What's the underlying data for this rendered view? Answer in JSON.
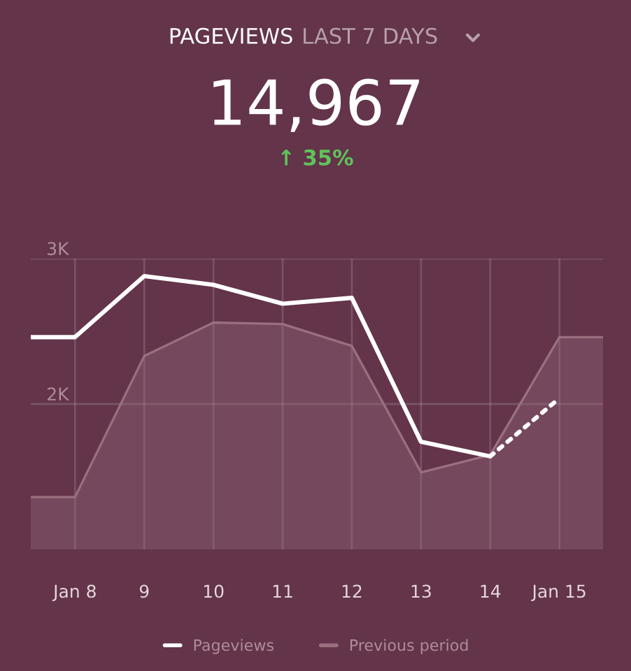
{
  "chart_data": {
    "type": "line",
    "title": "PAGEVIEWS",
    "subtitle": "LAST 7 DAYS",
    "annotations": [
      "14,967",
      "↑ 35%"
    ],
    "x": [
      7.36,
      8,
      9,
      10,
      11,
      12,
      13,
      14
    ],
    "series": [
      {
        "name": "Pageviews",
        "color": "#ffffff",
        "values": [
          2460,
          2460,
          2880,
          2820,
          2690,
          2730,
          1740,
          1640
        ]
      },
      {
        "type": "line",
        "color": "#ffffff",
        "line_style": "dotted",
        "x": [
          14,
          15
        ],
        "values": [
          1640,
          2040
        ]
      },
      {
        "name": "Previous period",
        "type": "area",
        "color": "#9a6f80",
        "x": [
          7.36,
          8,
          9,
          10,
          11,
          12,
          13,
          14,
          15,
          15.63
        ],
        "values": [
          1360,
          1360,
          2330,
          2560,
          2550,
          2400,
          1530,
          1650,
          2460,
          2460
        ]
      }
    ],
    "xlim": [
      7.36,
      15.63
    ],
    "xticks": [
      {
        "value": 8,
        "label": "Jan 8"
      },
      9,
      10,
      11,
      12,
      13,
      14,
      {
        "value": 15,
        "label": "Jan 15"
      }
    ],
    "ylim": [
      1000,
      3000
    ],
    "yticks": [
      {
        "value": 2000,
        "label": "2K"
      },
      {
        "value": 3000,
        "label": "3K"
      }
    ],
    "grid": true,
    "legend": "bottom",
    "marker": "none",
    "line_style": "solid"
  }
}
